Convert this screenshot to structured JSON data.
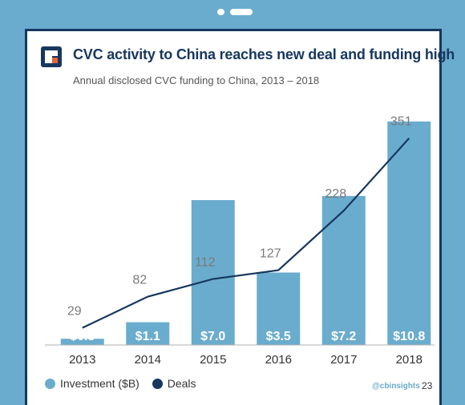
{
  "chart_data": {
    "type": "bar",
    "title": "CVC activity to China reaches new deal and funding high",
    "subtitle": "Annual disclosed CVC funding to China, 2013 – 2018",
    "categories": [
      "2013",
      "2014",
      "2015",
      "2016",
      "2017",
      "2018"
    ],
    "series": [
      {
        "name": "Investment ($B)",
        "type": "bar",
        "values": [
          0.3,
          1.1,
          7.0,
          3.5,
          7.2,
          10.8
        ],
        "labels": [
          "$0.3",
          "$1.1",
          "$7.0",
          "$3.5",
          "$7.2",
          "$10.8"
        ],
        "color": "#6aaccd"
      },
      {
        "name": "Deals",
        "type": "line",
        "values": [
          29,
          82,
          112,
          127,
          228,
          351
        ],
        "color": "#17375e"
      }
    ],
    "ylim_bars": [
      0,
      11.1
    ],
    "ylim_line": [
      0,
      390
    ],
    "grid": false,
    "legend": "bottom-left"
  },
  "footer": {
    "handle": "@cbinsights",
    "page": "23"
  },
  "colors": {
    "background": "#6aaccd",
    "navy": "#17375e",
    "bar": "#6aaccd",
    "logo_accent": "#e8623c"
  }
}
